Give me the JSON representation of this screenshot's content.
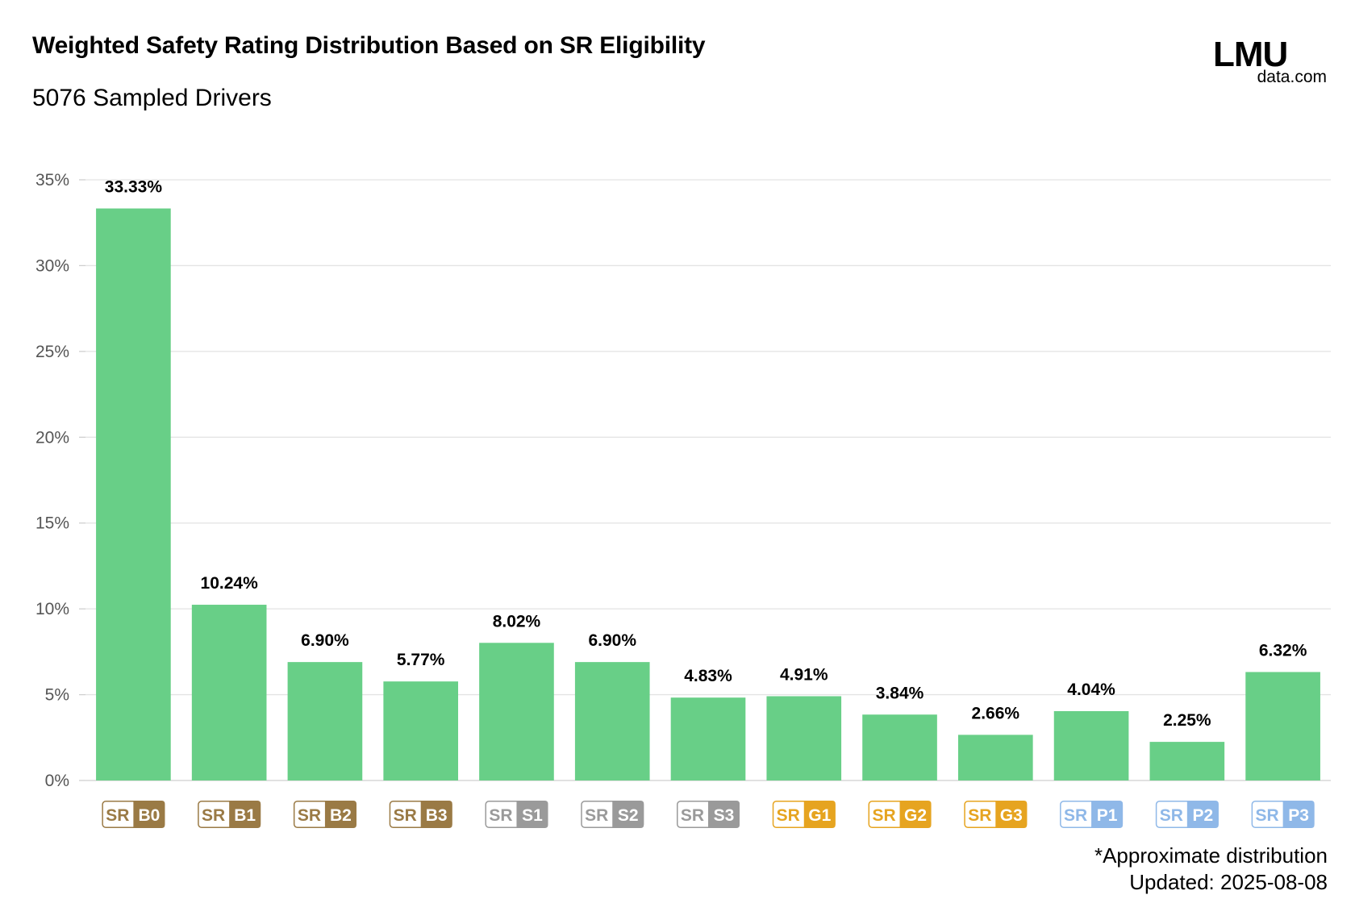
{
  "header": {
    "title": "Weighted Safety Rating Distribution Based on SR Eligibility",
    "subtitle": "5076 Sampled Drivers"
  },
  "logo": {
    "top": "LMU",
    "bottom": "data.com"
  },
  "footnote": {
    "line1": "*Approximate distribution",
    "line2": "Updated: 2025-08-08"
  },
  "chart_data": {
    "type": "bar",
    "categories": [
      "SR B0",
      "SR B1",
      "SR B2",
      "SR B3",
      "SR S1",
      "SR S2",
      "SR S3",
      "SR G1",
      "SR G2",
      "SR G3",
      "SR P1",
      "SR P2",
      "SR P3"
    ],
    "badges": [
      {
        "prefix": "SR",
        "grade": "B0",
        "color": "#9a7a45"
      },
      {
        "prefix": "SR",
        "grade": "B1",
        "color": "#9a7a45"
      },
      {
        "prefix": "SR",
        "grade": "B2",
        "color": "#9a7a45"
      },
      {
        "prefix": "SR",
        "grade": "B3",
        "color": "#9a7a45"
      },
      {
        "prefix": "SR",
        "grade": "S1",
        "color": "#9a9a9a"
      },
      {
        "prefix": "SR",
        "grade": "S2",
        "color": "#9a9a9a"
      },
      {
        "prefix": "SR",
        "grade": "S3",
        "color": "#9a9a9a"
      },
      {
        "prefix": "SR",
        "grade": "G1",
        "color": "#e6a420"
      },
      {
        "prefix": "SR",
        "grade": "G2",
        "color": "#e6a420"
      },
      {
        "prefix": "SR",
        "grade": "G3",
        "color": "#e6a420"
      },
      {
        "prefix": "SR",
        "grade": "P1",
        "color": "#8fb8e8"
      },
      {
        "prefix": "SR",
        "grade": "P2",
        "color": "#8fb8e8"
      },
      {
        "prefix": "SR",
        "grade": "P3",
        "color": "#8fb8e8"
      }
    ],
    "values": [
      33.33,
      10.24,
      6.9,
      5.77,
      8.02,
      6.9,
      4.83,
      4.91,
      3.84,
      2.66,
      4.04,
      2.25,
      6.32
    ],
    "value_labels": [
      "33.33%",
      "10.24%",
      "6.90%",
      "5.77%",
      "8.02%",
      "6.90%",
      "4.83%",
      "4.91%",
      "3.84%",
      "2.66%",
      "4.04%",
      "2.25%",
      "6.32%"
    ],
    "title": "Weighted Safety Rating Distribution Based on SR Eligibility",
    "subtitle": "5076 Sampled Drivers",
    "xlabel": "",
    "ylabel": "",
    "ylim": [
      0,
      35
    ],
    "yticks": [
      "0%",
      "5%",
      "10%",
      "15%",
      "20%",
      "25%",
      "30%",
      "35%"
    ],
    "ytick_values": [
      0,
      5,
      10,
      15,
      20,
      25,
      30,
      35
    ],
    "grid": true,
    "bar_color": "#68cf87",
    "grid_color": "#e3e3e3"
  }
}
